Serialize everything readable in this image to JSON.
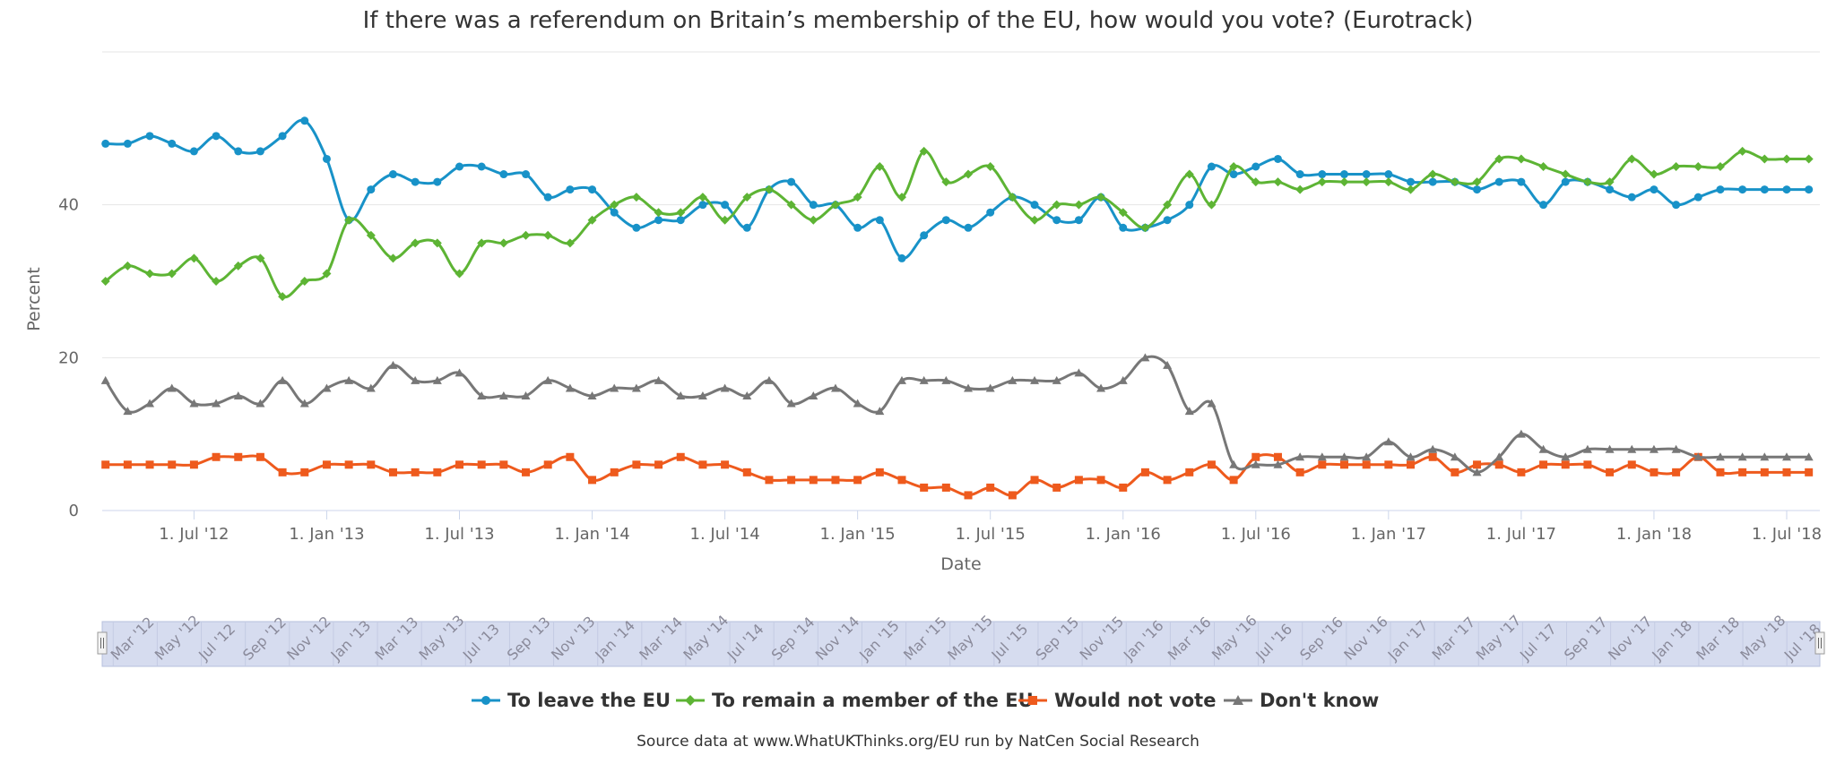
{
  "chart_data": {
    "type": "line",
    "title": "If there was a referendum on Britain’s membership of the EU, how would you vote? (Eurotrack)",
    "xlabel": "Date",
    "ylabel": "Percent",
    "ylim": [
      0,
      60
    ],
    "yticks": [
      "0",
      "20",
      "40"
    ],
    "xticks": [
      "1. Jul '12",
      "1. Jan '13",
      "1. Jul '13",
      "1. Jan '14",
      "1. Jul '14",
      "1. Jan '15",
      "1. Jul '15",
      "1. Jan '16",
      "1. Jul '16",
      "1. Jan '17",
      "1. Jul '17",
      "1. Jan '18",
      "1. Jul '18"
    ],
    "navigator_labels": [
      "Mar '12",
      "May '12",
      "Jul '12",
      "Sep '12",
      "Nov '12",
      "Jan '13",
      "Mar '13",
      "May '13",
      "Jul '13",
      "Sep '13",
      "Nov '13",
      "Jan '14",
      "Mar '14",
      "May '14",
      "Jul '14",
      "Sep '14",
      "Nov '14",
      "Jan '15",
      "Mar '15",
      "May '15",
      "Jul '15",
      "Sep '15",
      "Nov '15",
      "Jan '16",
      "Mar '16",
      "May '16",
      "Jul '16",
      "Sep '16",
      "Nov '16",
      "Jan '17",
      "Mar '17",
      "May '17",
      "Jul '17",
      "Sep '17",
      "Nov '17",
      "Jan '18",
      "Mar '18",
      "May '18",
      "Jul '18"
    ],
    "x": [
      "2012-03",
      "2012-04",
      "2012-05",
      "2012-06",
      "2012-07",
      "2012-08",
      "2012-09",
      "2012-10",
      "2012-11",
      "2012-12",
      "2013-01",
      "2013-02",
      "2013-03",
      "2013-04",
      "2013-05",
      "2013-06",
      "2013-07",
      "2013-08",
      "2013-09",
      "2013-10",
      "2013-11",
      "2013-12",
      "2014-01",
      "2014-02",
      "2014-03",
      "2014-04",
      "2014-05",
      "2014-06",
      "2014-07",
      "2014-08",
      "2014-09",
      "2014-10",
      "2014-11",
      "2014-12",
      "2015-01",
      "2015-02",
      "2015-03",
      "2015-04",
      "2015-05",
      "2015-06",
      "2015-07",
      "2015-08",
      "2015-09",
      "2015-10",
      "2015-11",
      "2015-12",
      "2016-01",
      "2016-02",
      "2016-03",
      "2016-04",
      "2016-05",
      "2016-06",
      "2016-07",
      "2016-08",
      "2016-09",
      "2016-10",
      "2016-11",
      "2016-12",
      "2017-01",
      "2017-02",
      "2017-03",
      "2017-04",
      "2017-05",
      "2017-06",
      "2017-07",
      "2017-08",
      "2017-09",
      "2017-10",
      "2017-11",
      "2017-12",
      "2018-01",
      "2018-02",
      "2018-03",
      "2018-04",
      "2018-05",
      "2018-06",
      "2018-07",
      "2018-08"
    ],
    "series": [
      {
        "name": "To leave the EU",
        "color": "#1892c8",
        "marker": "circle",
        "values": [
          48,
          48,
          49,
          48,
          47,
          49,
          47,
          47,
          49,
          51,
          46,
          38,
          42,
          44,
          43,
          43,
          45,
          45,
          44,
          44,
          41,
          42,
          42,
          39,
          37,
          38,
          38,
          40,
          40,
          37,
          42,
          43,
          40,
          40,
          37,
          38,
          33,
          36,
          38,
          37,
          39,
          41,
          40,
          38,
          38,
          41,
          37,
          37,
          38,
          40,
          45,
          44,
          45,
          46,
          44,
          44,
          44,
          44,
          44,
          43,
          43,
          43,
          42,
          43,
          43,
          40,
          43,
          43,
          42,
          41,
          42,
          40,
          41,
          42,
          42,
          42,
          42,
          42
        ]
      },
      {
        "name": "To remain a member of the EU",
        "color": "#5db434",
        "marker": "diamond",
        "values": [
          30,
          32,
          31,
          31,
          33,
          30,
          32,
          33,
          28,
          30,
          31,
          38,
          36,
          33,
          35,
          35,
          31,
          35,
          35,
          36,
          36,
          35,
          38,
          40,
          41,
          39,
          39,
          41,
          38,
          41,
          42,
          40,
          38,
          40,
          41,
          45,
          41,
          47,
          43,
          44,
          45,
          41,
          38,
          40,
          40,
          41,
          39,
          37,
          40,
          44,
          40,
          45,
          43,
          43,
          42,
          43,
          43,
          43,
          43,
          42,
          44,
          43,
          43,
          46,
          46,
          45,
          44,
          43,
          43,
          46,
          44,
          45,
          45,
          45,
          47,
          46,
          46,
          46
        ]
      },
      {
        "name": "Would not vote",
        "color": "#ee5a1d",
        "marker": "square",
        "values": [
          6,
          6,
          6,
          6,
          6,
          7,
          7,
          7,
          5,
          5,
          6,
          6,
          6,
          5,
          5,
          5,
          6,
          6,
          6,
          5,
          6,
          7,
          4,
          5,
          6,
          6,
          7,
          6,
          6,
          5,
          4,
          4,
          4,
          4,
          4,
          5,
          4,
          3,
          3,
          2,
          3,
          2,
          4,
          3,
          4,
          4,
          3,
          5,
          4,
          5,
          6,
          4,
          7,
          7,
          5,
          6,
          6,
          6,
          6,
          6,
          7,
          5,
          6,
          6,
          5,
          6,
          6,
          6,
          5,
          6,
          5,
          5,
          7,
          5,
          5,
          5,
          5,
          5
        ]
      },
      {
        "name": "Don't know",
        "color": "#777777",
        "marker": "triangle",
        "values": [
          17,
          13,
          14,
          16,
          14,
          14,
          15,
          14,
          17,
          14,
          16,
          17,
          16,
          19,
          17,
          17,
          18,
          15,
          15,
          15,
          17,
          16,
          15,
          16,
          16,
          17,
          15,
          15,
          16,
          15,
          17,
          14,
          15,
          16,
          14,
          13,
          17,
          17,
          17,
          16,
          16,
          17,
          17,
          17,
          18,
          16,
          17,
          20,
          19,
          13,
          14,
          6,
          6,
          6,
          7,
          7,
          7,
          7,
          9,
          7,
          8,
          7,
          5,
          7,
          10,
          8,
          7,
          8,
          8,
          8,
          8,
          8,
          7,
          7,
          7,
          7,
          7,
          7
        ]
      }
    ],
    "legend_position": "bottom-center",
    "grid": true
  },
  "source_note": "Source data at www.WhatUKThinks.org/EU run by NatCen Social Research"
}
